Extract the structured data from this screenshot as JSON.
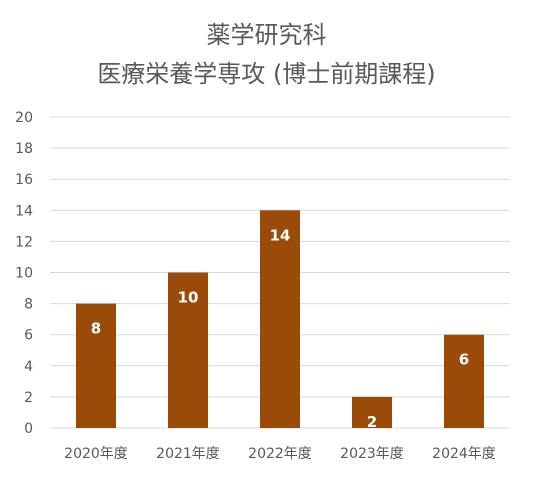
{
  "title": {
    "line1": "薬学研究科",
    "line2": "医療栄養学専攻 (博士前期課程)"
  },
  "colors": {
    "bar": "#9a4a09",
    "grid": "#d9d9d9",
    "text": "#595959",
    "data_label": "#ffffff"
  },
  "chart_data": {
    "type": "bar",
    "title": "薬学研究科 医療栄養学専攻 (博士前期課程)",
    "categories": [
      "2020年度",
      "2021年度",
      "2022年度",
      "2023年度",
      "2024年度"
    ],
    "values": [
      8,
      10,
      14,
      2,
      6
    ],
    "data_labels": [
      "8",
      "10",
      "14",
      "2",
      "6"
    ],
    "xlabel": "",
    "ylabel": "",
    "ylim": [
      0,
      20
    ],
    "yticks": [
      0,
      2,
      4,
      6,
      8,
      10,
      12,
      14,
      16,
      18,
      20
    ],
    "ytick_labels": [
      "0",
      "2",
      "4",
      "6",
      "8",
      "10",
      "12",
      "14",
      "16",
      "18",
      "20"
    ],
    "grid": true,
    "legend": "none"
  }
}
